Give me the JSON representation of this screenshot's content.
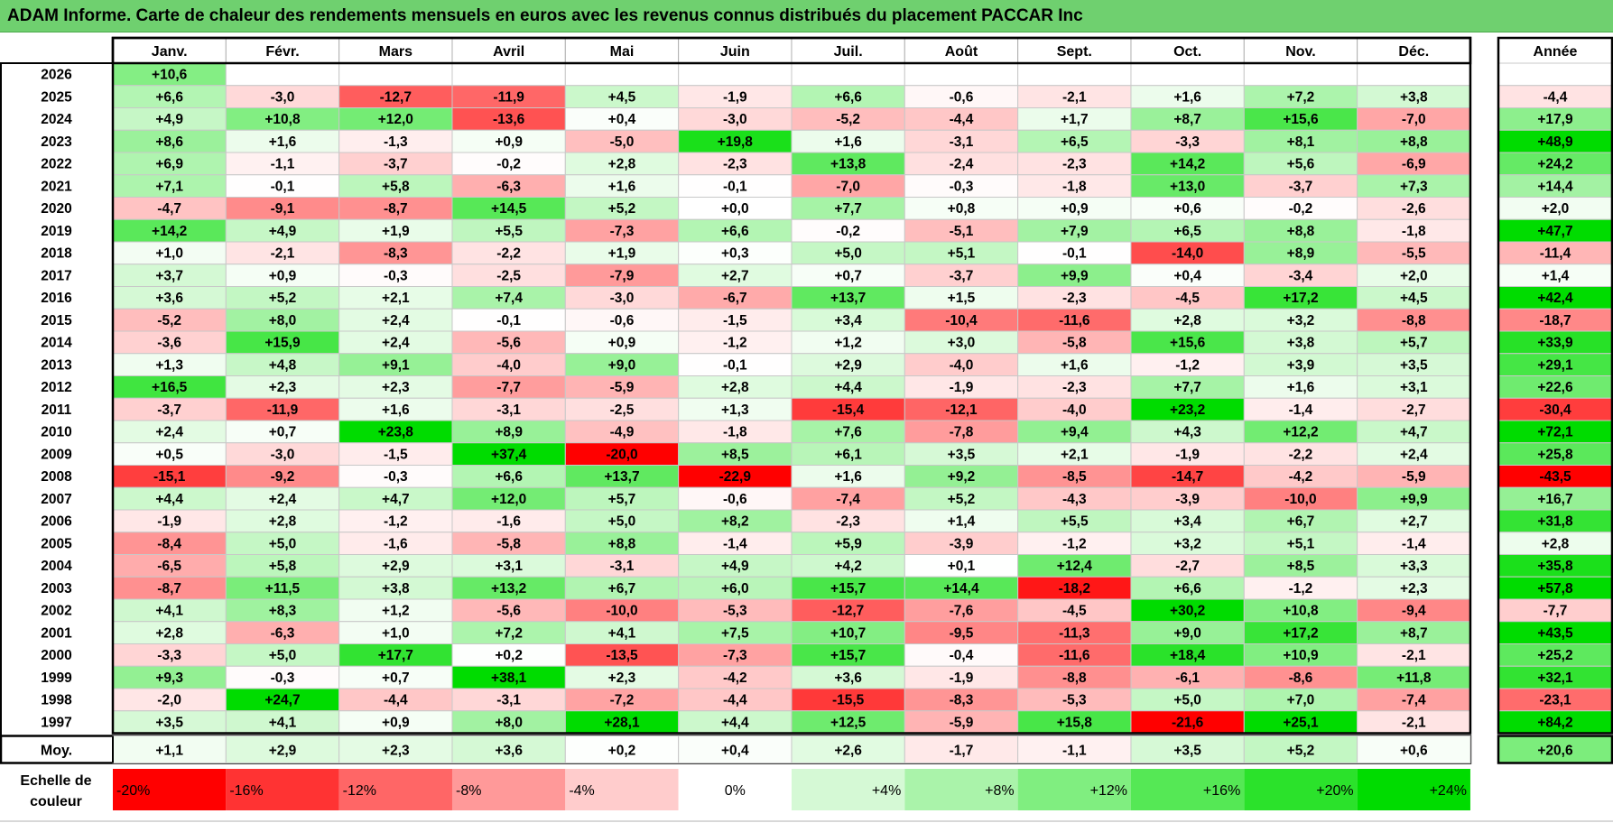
{
  "title": "ADAM Informe. Carte de chaleur des rendements mensuels en euros avec les revenus connus distribués du placement PACCAR Inc",
  "chart_data": {
    "type": "heatmap",
    "title": "ADAM Informe. Carte de chaleur des rendements mensuels en euros avec les revenus connus distribués du placement PACCAR Inc",
    "months": [
      "Janv.",
      "Févr.",
      "Mars",
      "Avril",
      "Mai",
      "Juin",
      "Juil.",
      "Août",
      "Sept.",
      "Oct.",
      "Nov.",
      "Déc."
    ],
    "year_header": "Année",
    "rows": [
      {
        "year": "2026",
        "values": [
          "+10,6",
          null,
          null,
          null,
          null,
          null,
          null,
          null,
          null,
          null,
          null,
          null
        ],
        "annual": null
      },
      {
        "year": "2025",
        "values": [
          "+6,6",
          "-3,0",
          "-12,7",
          "-11,9",
          "+4,5",
          "-1,9",
          "+6,6",
          "-0,6",
          "-2,1",
          "+1,6",
          "+7,2",
          "+3,8"
        ],
        "annual": "-4,4"
      },
      {
        "year": "2024",
        "values": [
          "+4,9",
          "+10,8",
          "+12,0",
          "-13,6",
          "+0,4",
          "-3,0",
          "-5,2",
          "-4,4",
          "+1,7",
          "+8,7",
          "+15,6",
          "-7,0"
        ],
        "annual": "+17,9"
      },
      {
        "year": "2023",
        "values": [
          "+8,6",
          "+1,6",
          "-1,3",
          "+0,9",
          "-5,0",
          "+19,8",
          "+1,6",
          "-3,1",
          "+6,5",
          "-3,3",
          "+8,1",
          "+8,8"
        ],
        "annual": "+48,9"
      },
      {
        "year": "2022",
        "values": [
          "+6,9",
          "-1,1",
          "-3,7",
          "-0,2",
          "+2,8",
          "-2,3",
          "+13,8",
          "-2,4",
          "-2,3",
          "+14,2",
          "+5,6",
          "-6,9"
        ],
        "annual": "+24,2"
      },
      {
        "year": "2021",
        "values": [
          "+7,1",
          "-0,1",
          "+5,8",
          "-6,3",
          "+1,6",
          "-0,1",
          "-7,0",
          "-0,3",
          "-1,8",
          "+13,0",
          "-3,7",
          "+7,3"
        ],
        "annual": "+14,4"
      },
      {
        "year": "2020",
        "values": [
          "-4,7",
          "-9,1",
          "-8,7",
          "+14,5",
          "+5,2",
          "+0,0",
          "+7,7",
          "+0,8",
          "+0,9",
          "+0,6",
          "-0,2",
          "-2,6"
        ],
        "annual": "+2,0"
      },
      {
        "year": "2019",
        "values": [
          "+14,2",
          "+4,9",
          "+1,9",
          "+5,5",
          "-7,3",
          "+6,6",
          "-0,2",
          "-5,1",
          "+7,9",
          "+6,5",
          "+8,8",
          "-1,8"
        ],
        "annual": "+47,7"
      },
      {
        "year": "2018",
        "values": [
          "+1,0",
          "-2,1",
          "-8,3",
          "-2,2",
          "+1,9",
          "+0,3",
          "+5,0",
          "+5,1",
          "-0,1",
          "-14,0",
          "+8,9",
          "-5,5"
        ],
        "annual": "-11,4"
      },
      {
        "year": "2017",
        "values": [
          "+3,7",
          "+0,9",
          "-0,3",
          "-2,5",
          "-7,9",
          "+2,7",
          "+0,7",
          "-3,7",
          "+9,9",
          "+0,4",
          "-3,4",
          "+2,0"
        ],
        "annual": "+1,4"
      },
      {
        "year": "2016",
        "values": [
          "+3,6",
          "+5,2",
          "+2,1",
          "+7,4",
          "-3,0",
          "-6,7",
          "+13,7",
          "+1,5",
          "-2,3",
          "-4,5",
          "+17,2",
          "+4,5"
        ],
        "annual": "+42,4"
      },
      {
        "year": "2015",
        "values": [
          "-5,2",
          "+8,0",
          "+2,4",
          "-0,1",
          "-0,6",
          "-1,5",
          "+3,4",
          "-10,4",
          "-11,6",
          "+2,8",
          "+3,2",
          "-8,8"
        ],
        "annual": "-18,7"
      },
      {
        "year": "2014",
        "values": [
          "-3,6",
          "+15,9",
          "+2,4",
          "-5,6",
          "+0,9",
          "-1,2",
          "+1,2",
          "+3,0",
          "-5,8",
          "+15,6",
          "+3,8",
          "+5,7"
        ],
        "annual": "+33,9"
      },
      {
        "year": "2013",
        "values": [
          "+1,3",
          "+4,8",
          "+9,1",
          "-4,0",
          "+9,0",
          "-0,1",
          "+2,9",
          "-4,0",
          "+1,6",
          "-1,2",
          "+3,9",
          "+3,5"
        ],
        "annual": "+29,1"
      },
      {
        "year": "2012",
        "values": [
          "+16,5",
          "+2,3",
          "+2,3",
          "-7,7",
          "-5,9",
          "+2,8",
          "+4,4",
          "-1,9",
          "-2,3",
          "+7,7",
          "+1,6",
          "+3,1"
        ],
        "annual": "+22,6"
      },
      {
        "year": "2011",
        "values": [
          "-3,7",
          "-11,9",
          "+1,6",
          "-3,1",
          "-2,5",
          "+1,3",
          "-15,4",
          "-12,1",
          "-4,0",
          "+23,2",
          "-1,4",
          "-2,7"
        ],
        "annual": "-30,4"
      },
      {
        "year": "2010",
        "values": [
          "+2,4",
          "+0,7",
          "+23,8",
          "+8,9",
          "-4,9",
          "-1,8",
          "+7,6",
          "-7,8",
          "+9,4",
          "+4,3",
          "+12,2",
          "+4,7"
        ],
        "annual": "+72,1"
      },
      {
        "year": "2009",
        "values": [
          "+0,5",
          "-3,0",
          "-1,5",
          "+37,4",
          "-20,0",
          "+8,5",
          "+6,1",
          "+3,5",
          "+2,1",
          "-1,9",
          "-2,2",
          "+2,4"
        ],
        "annual": "+25,8"
      },
      {
        "year": "2008",
        "values": [
          "-15,1",
          "-9,2",
          "-0,3",
          "+6,6",
          "+13,7",
          "-22,9",
          "+1,6",
          "+9,2",
          "-8,5",
          "-14,7",
          "-4,2",
          "-5,9"
        ],
        "annual": "-43,5"
      },
      {
        "year": "2007",
        "values": [
          "+4,4",
          "+2,4",
          "+4,7",
          "+12,0",
          "+5,7",
          "-0,6",
          "-7,4",
          "+5,2",
          "-4,3",
          "-3,9",
          "-10,0",
          "+9,9"
        ],
        "annual": "+16,7"
      },
      {
        "year": "2006",
        "values": [
          "-1,9",
          "+2,8",
          "-1,2",
          "-1,6",
          "+5,0",
          "+8,2",
          "-2,3",
          "+1,4",
          "+5,5",
          "+3,4",
          "+6,7",
          "+2,7"
        ],
        "annual": "+31,8"
      },
      {
        "year": "2005",
        "values": [
          "-8,4",
          "+5,0",
          "-1,6",
          "-5,8",
          "+8,8",
          "-1,4",
          "+5,9",
          "-3,9",
          "-1,2",
          "+3,2",
          "+5,1",
          "-1,4"
        ],
        "annual": "+2,8"
      },
      {
        "year": "2004",
        "values": [
          "-6,5",
          "+5,8",
          "+2,9",
          "+3,1",
          "-3,1",
          "+4,9",
          "+4,2",
          "+0,1",
          "+12,4",
          "-2,7",
          "+8,5",
          "+3,3"
        ],
        "annual": "+35,8"
      },
      {
        "year": "2003",
        "values": [
          "-8,7",
          "+11,5",
          "+3,8",
          "+13,2",
          "+6,7",
          "+6,0",
          "+15,7",
          "+14,4",
          "-18,2",
          "+6,6",
          "-1,2",
          "+2,3"
        ],
        "annual": "+57,8"
      },
      {
        "year": "2002",
        "values": [
          "+4,1",
          "+8,3",
          "+1,2",
          "-5,6",
          "-10,0",
          "-5,3",
          "-12,7",
          "-7,6",
          "-4,5",
          "+30,2",
          "+10,8",
          "-9,4"
        ],
        "annual": "-7,7"
      },
      {
        "year": "2001",
        "values": [
          "+2,8",
          "-6,3",
          "+1,0",
          "+7,2",
          "+4,1",
          "+7,5",
          "+10,7",
          "-9,5",
          "-11,3",
          "+9,0",
          "+17,2",
          "+8,7"
        ],
        "annual": "+43,5"
      },
      {
        "year": "2000",
        "values": [
          "-3,3",
          "+5,0",
          "+17,7",
          "+0,2",
          "-13,5",
          "-7,3",
          "+15,7",
          "-0,4",
          "-11,6",
          "+18,4",
          "+10,9",
          "-2,1"
        ],
        "annual": "+25,2"
      },
      {
        "year": "1999",
        "values": [
          "+9,3",
          "-0,3",
          "+0,7",
          "+38,1",
          "+2,3",
          "-4,2",
          "+3,6",
          "-1,9",
          "-8,8",
          "-6,1",
          "-8,6",
          "+11,8"
        ],
        "annual": "+32,1"
      },
      {
        "year": "1998",
        "values": [
          "-2,0",
          "+24,7",
          "-4,4",
          "-3,1",
          "-7,2",
          "-4,4",
          "-15,5",
          "-8,3",
          "-5,3",
          "+5,0",
          "+7,0",
          "-7,4"
        ],
        "annual": "-23,1"
      },
      {
        "year": "1997",
        "values": [
          "+3,5",
          "+4,1",
          "+0,9",
          "+8,0",
          "+28,1",
          "+4,4",
          "+12,5",
          "-5,9",
          "+15,8",
          "-21,6",
          "+25,1",
          "-2,1"
        ],
        "annual": "+84,2"
      }
    ],
    "average": {
      "label": "Moy.",
      "values": [
        "+1,1",
        "+2,9",
        "+2,3",
        "+3,6",
        "+0,2",
        "+0,4",
        "+2,6",
        "-1,7",
        "-1,1",
        "+3,5",
        "+5,2",
        "+0,6"
      ],
      "annual": "+20,6"
    },
    "scale": {
      "label_line1": "Echelle de",
      "label_line2": "couleur",
      "stops": [
        "-20%",
        "-16%",
        "-12%",
        "-8%",
        "-4%",
        "0%",
        "+4%",
        "+8%",
        "+12%",
        "+16%",
        "+20%",
        "+24%"
      ]
    },
    "colors": {
      "neg_max": "#ff0000",
      "neutral": "#ffffff",
      "pos_max": "#00dd00",
      "title_bg": "#6fd06f"
    }
  }
}
